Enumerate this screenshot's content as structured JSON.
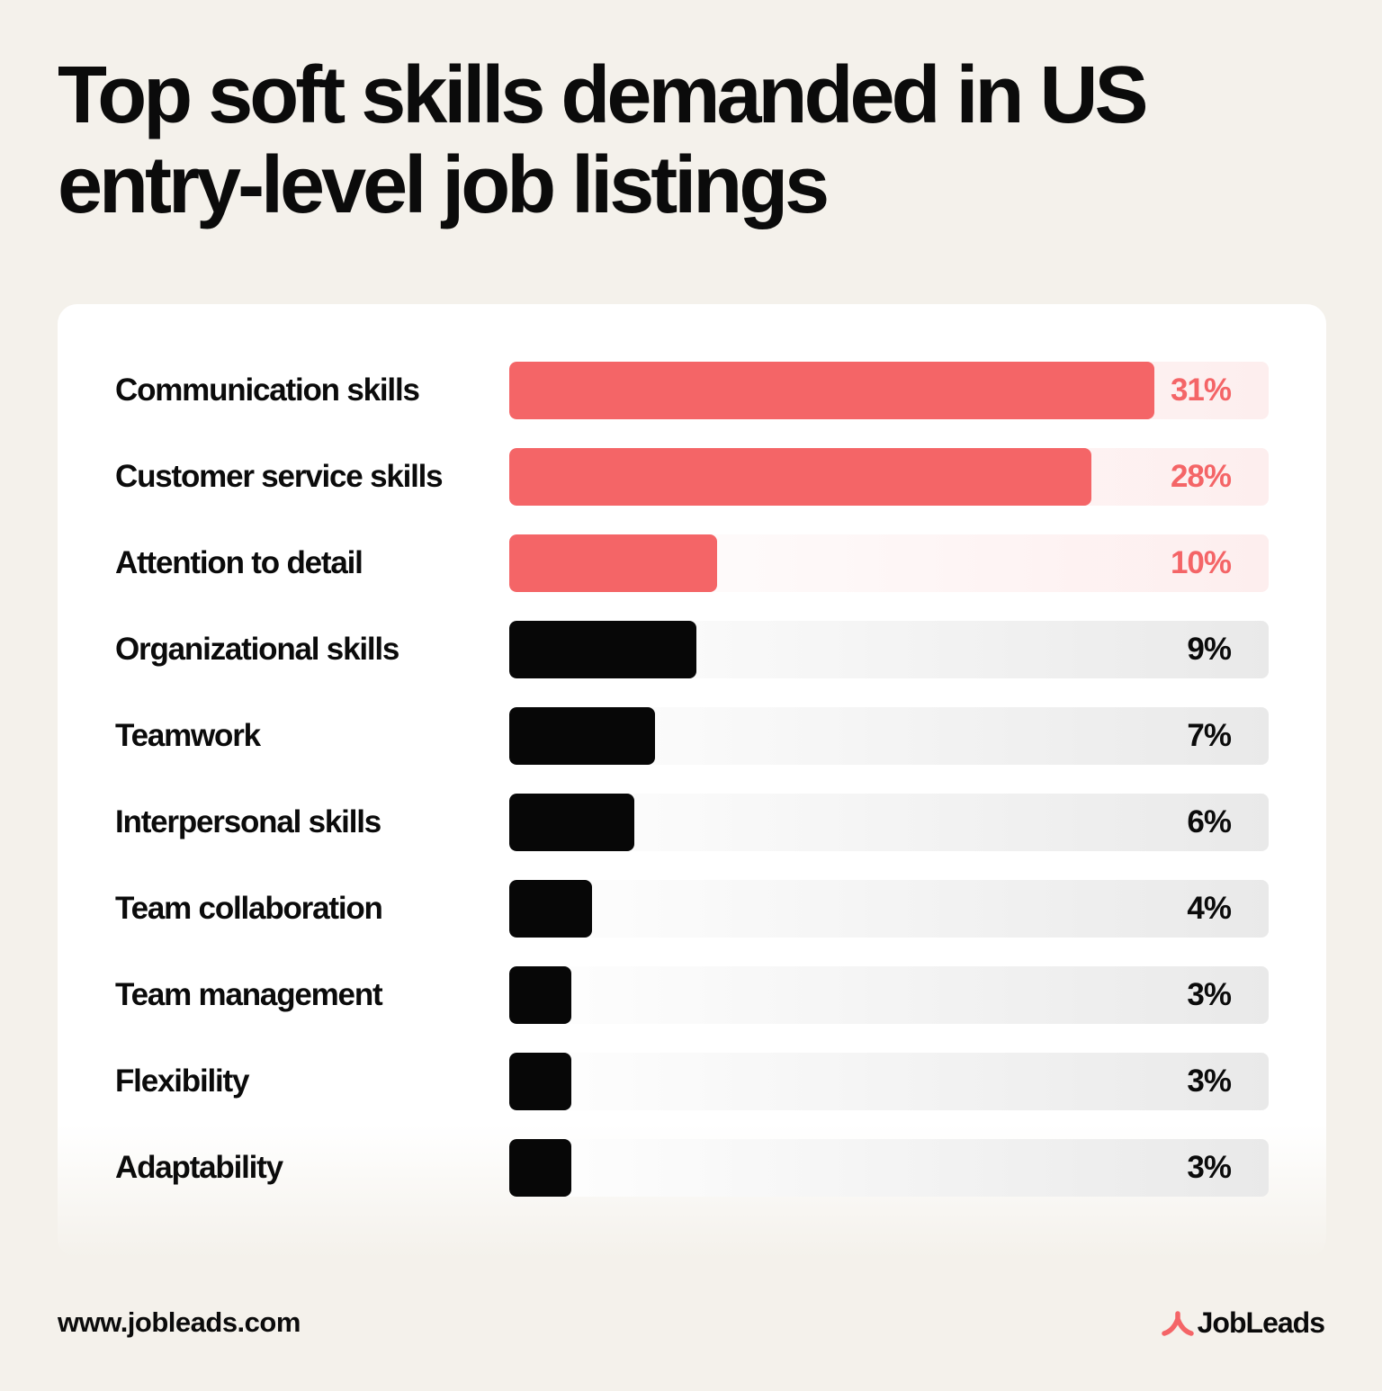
{
  "title_line1": "Top soft skills demanded in US",
  "title_line2": "entry-level job listings",
  "footer": {
    "url": "www.jobleads.com",
    "brand": "JobLeads"
  },
  "colors": {
    "background": "#f4f1eb",
    "accent": "#f46567",
    "dark": "#070707"
  },
  "chart_data": {
    "type": "bar",
    "orientation": "horizontal",
    "value_max": 36.5,
    "categories": [
      "Communication skills",
      "Customer service skills",
      "Attention to detail",
      "Organizational skills",
      "Teamwork",
      "Interpersonal skills",
      "Team collaboration",
      "Team management",
      "Flexibility",
      "Adaptability"
    ],
    "values": [
      31,
      28,
      10,
      9,
      7,
      6,
      4,
      3,
      3,
      3
    ],
    "value_labels": [
      "31%",
      "28%",
      "10%",
      "9%",
      "7%",
      "6%",
      "4%",
      "3%",
      "3%",
      "3%"
    ],
    "highlighted": [
      true,
      true,
      true,
      false,
      false,
      false,
      false,
      false,
      false,
      false
    ]
  }
}
